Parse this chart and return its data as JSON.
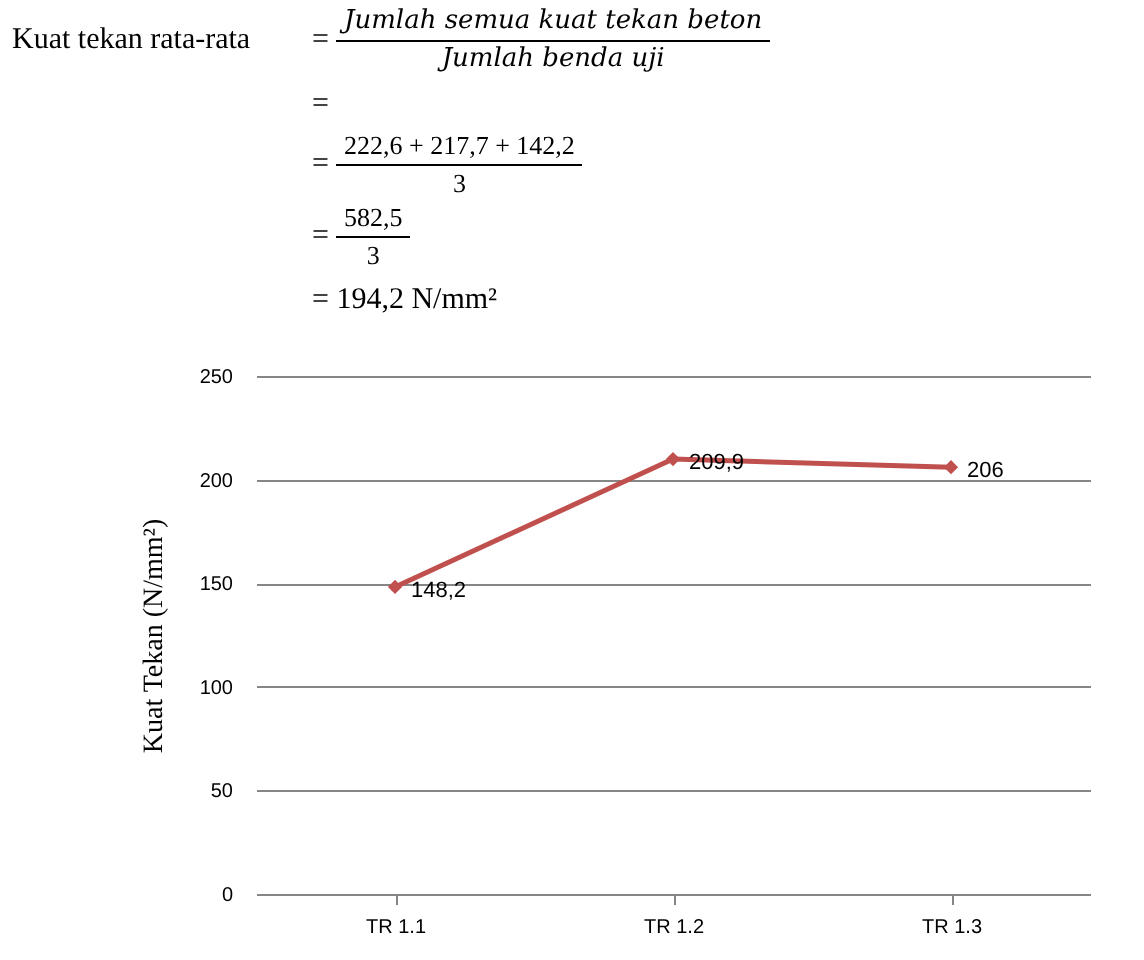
{
  "chart_data": {
    "type": "line",
    "annotations": [
      "Kuat tekan rata-rata",
      "=",
      "Jumlah semua kuat tekan beton",
      "Jumlah benda uji",
      "=",
      "=",
      "222,6 + 217,7 + 142,2",
      "3",
      "=",
      "582,5",
      "3",
      "= 194,2 N/mm²"
    ],
    "ylabel": "Kuat Tekan (N/mm²)",
    "categories": [
      "TR 1.1",
      "TR 1.2",
      "TR 1.3"
    ],
    "values": [
      148.2,
      209.9,
      206
    ],
    "value_labels": [
      "148,2",
      "209,9",
      "206"
    ],
    "color": "#c0504d",
    "ylim": [
      0,
      250
    ],
    "yticks": [
      0,
      50,
      100,
      150,
      200,
      250
    ],
    "grid": "y",
    "marker": "diamond"
  }
}
